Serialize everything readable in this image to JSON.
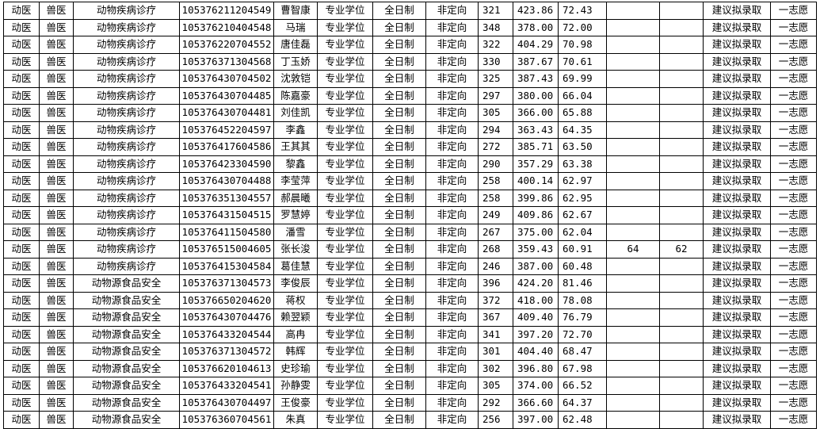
{
  "rows": [
    [
      "动医",
      "兽医",
      "动物疾病诊疗",
      "105376211204549",
      "曹智康",
      "专业学位",
      "全日制",
      "非定向",
      "321",
      "423.86",
      "72.43",
      "",
      "",
      "建议拟录取",
      "一志愿"
    ],
    [
      "动医",
      "兽医",
      "动物疾病诊疗",
      "105376210404548",
      "马瑞",
      "专业学位",
      "全日制",
      "非定向",
      "348",
      "378.00",
      "72.00",
      "",
      "",
      "建议拟录取",
      "一志愿"
    ],
    [
      "动医",
      "兽医",
      "动物疾病诊疗",
      "105376220704552",
      "唐佳磊",
      "专业学位",
      "全日制",
      "非定向",
      "322",
      "404.29",
      "70.98",
      "",
      "",
      "建议拟录取",
      "一志愿"
    ],
    [
      "动医",
      "兽医",
      "动物疾病诊疗",
      "105376371304568",
      "丁玉娇",
      "专业学位",
      "全日制",
      "非定向",
      "330",
      "387.67",
      "70.61",
      "",
      "",
      "建议拟录取",
      "一志愿"
    ],
    [
      "动医",
      "兽医",
      "动物疾病诊疗",
      "105376430704502",
      "沈敦铠",
      "专业学位",
      "全日制",
      "非定向",
      "325",
      "387.43",
      "69.99",
      "",
      "",
      "建议拟录取",
      "一志愿"
    ],
    [
      "动医",
      "兽医",
      "动物疾病诊疗",
      "105376430704485",
      "陈嘉豪",
      "专业学位",
      "全日制",
      "非定向",
      "297",
      "380.00",
      "66.04",
      "",
      "",
      "建议拟录取",
      "一志愿"
    ],
    [
      "动医",
      "兽医",
      "动物疾病诊疗",
      "105376430704481",
      "刘佳凯",
      "专业学位",
      "全日制",
      "非定向",
      "305",
      "366.00",
      "65.88",
      "",
      "",
      "建议拟录取",
      "一志愿"
    ],
    [
      "动医",
      "兽医",
      "动物疾病诊疗",
      "105376452204597",
      "李鑫",
      "专业学位",
      "全日制",
      "非定向",
      "294",
      "363.43",
      "64.35",
      "",
      "",
      "建议拟录取",
      "一志愿"
    ],
    [
      "动医",
      "兽医",
      "动物疾病诊疗",
      "105376417604586",
      "王其其",
      "专业学位",
      "全日制",
      "非定向",
      "272",
      "385.71",
      "63.50",
      "",
      "",
      "建议拟录取",
      "一志愿"
    ],
    [
      "动医",
      "兽医",
      "动物疾病诊疗",
      "105376423304590",
      "黎鑫",
      "专业学位",
      "全日制",
      "非定向",
      "290",
      "357.29",
      "63.38",
      "",
      "",
      "建议拟录取",
      "一志愿"
    ],
    [
      "动医",
      "兽医",
      "动物疾病诊疗",
      "105376430704488",
      "李莹萍",
      "专业学位",
      "全日制",
      "非定向",
      "258",
      "400.14",
      "62.97",
      "",
      "",
      "建议拟录取",
      "一志愿"
    ],
    [
      "动医",
      "兽医",
      "动物疾病诊疗",
      "105376351304557",
      "郝晨曦",
      "专业学位",
      "全日制",
      "非定向",
      "258",
      "399.86",
      "62.95",
      "",
      "",
      "建议拟录取",
      "一志愿"
    ],
    [
      "动医",
      "兽医",
      "动物疾病诊疗",
      "105376431504515",
      "罗慧婷",
      "专业学位",
      "全日制",
      "非定向",
      "249",
      "409.86",
      "62.67",
      "",
      "",
      "建议拟录取",
      "一志愿"
    ],
    [
      "动医",
      "兽医",
      "动物疾病诊疗",
      "105376411504580",
      "潘雪",
      "专业学位",
      "全日制",
      "非定向",
      "267",
      "375.00",
      "62.04",
      "",
      "",
      "建议拟录取",
      "一志愿"
    ],
    [
      "动医",
      "兽医",
      "动物疾病诊疗",
      "105376515004605",
      "张长浚",
      "专业学位",
      "全日制",
      "非定向",
      "268",
      "359.43",
      "60.91",
      "64",
      "62",
      "建议拟录取",
      "一志愿"
    ],
    [
      "动医",
      "兽医",
      "动物疾病诊疗",
      "105376415304584",
      "葛佳慧",
      "专业学位",
      "全日制",
      "非定向",
      "246",
      "387.00",
      "60.48",
      "",
      "",
      "建议拟录取",
      "一志愿"
    ],
    [
      "动医",
      "兽医",
      "动物源食品安全",
      "105376371304573",
      "李俊辰",
      "专业学位",
      "全日制",
      "非定向",
      "396",
      "424.20",
      "81.46",
      "",
      "",
      "建议拟录取",
      "一志愿"
    ],
    [
      "动医",
      "兽医",
      "动物源食品安全",
      "105376650204620",
      "蒋权",
      "专业学位",
      "全日制",
      "非定向",
      "372",
      "418.00",
      "78.08",
      "",
      "",
      "建议拟录取",
      "一志愿"
    ],
    [
      "动医",
      "兽医",
      "动物源食品安全",
      "105376430704476",
      "赖翌颖",
      "专业学位",
      "全日制",
      "非定向",
      "367",
      "409.40",
      "76.79",
      "",
      "",
      "建议拟录取",
      "一志愿"
    ],
    [
      "动医",
      "兽医",
      "动物源食品安全",
      "105376433204544",
      "高冉",
      "专业学位",
      "全日制",
      "非定向",
      "341",
      "397.20",
      "72.70",
      "",
      "",
      "建议拟录取",
      "一志愿"
    ],
    [
      "动医",
      "兽医",
      "动物源食品安全",
      "105376371304572",
      "韩辉",
      "专业学位",
      "全日制",
      "非定向",
      "301",
      "404.40",
      "68.47",
      "",
      "",
      "建议拟录取",
      "一志愿"
    ],
    [
      "动医",
      "兽医",
      "动物源食品安全",
      "105376620104613",
      "史珍瑜",
      "专业学位",
      "全日制",
      "非定向",
      "302",
      "396.80",
      "67.98",
      "",
      "",
      "建议拟录取",
      "一志愿"
    ],
    [
      "动医",
      "兽医",
      "动物源食品安全",
      "105376433204541",
      "孙静雯",
      "专业学位",
      "全日制",
      "非定向",
      "305",
      "374.00",
      "66.52",
      "",
      "",
      "建议拟录取",
      "一志愿"
    ],
    [
      "动医",
      "兽医",
      "动物源食品安全",
      "105376430704497",
      "王俊豪",
      "专业学位",
      "全日制",
      "非定向",
      "292",
      "366.60",
      "64.37",
      "",
      "",
      "建议拟录取",
      "一志愿"
    ],
    [
      "动医",
      "兽医",
      "动物源食品安全",
      "105376360704561",
      "朱真",
      "专业学位",
      "全日制",
      "非定向",
      "256",
      "397.00",
      "62.48",
      "",
      "",
      "建议拟录取",
      "一志愿"
    ]
  ]
}
